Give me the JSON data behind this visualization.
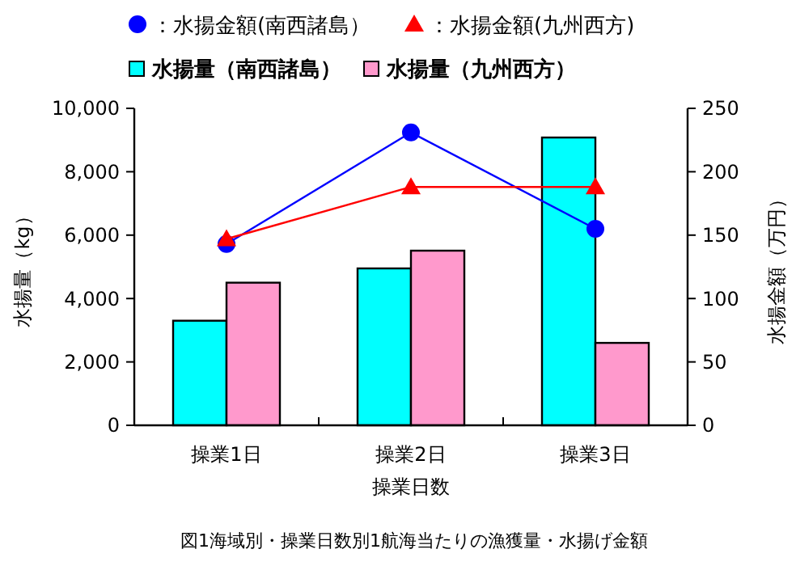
{
  "chart_data": {
    "type": "bar",
    "categories": [
      "操業1日",
      "操業2日",
      "操業3日"
    ],
    "xlabel": "操業日数",
    "ylabel": "水揚量（kg）",
    "y2label": "水揚金額（万円）",
    "ylim": [
      0,
      10000
    ],
    "yticks": [
      {
        "value": 0,
        "label": "0"
      },
      {
        "value": 2000,
        "label": "2,000"
      },
      {
        "value": 4000,
        "label": "4,000"
      },
      {
        "value": 6000,
        "label": "6,000"
      },
      {
        "value": 8000,
        "label": "8,000"
      },
      {
        "value": 10000,
        "label": "10,000"
      }
    ],
    "y2lim": [
      0,
      250
    ],
    "y2ticks": [
      0,
      50,
      100,
      150,
      200,
      250
    ],
    "series": [
      {
        "name": "：水揚金額(南西諸島）",
        "type": "line",
        "axis": "y2",
        "marker": "circle",
        "color": "#0000ff",
        "values": [
          143,
          231,
          155
        ]
      },
      {
        "name": "：水揚金額(九州西方)",
        "type": "line",
        "axis": "y2",
        "marker": "triangle",
        "color": "#ff0000",
        "values": [
          147,
          188,
          188
        ]
      },
      {
        "name": "水揚量（南西諸島）",
        "color": "#00ffff",
        "values": [
          3300,
          4950,
          9080
        ]
      },
      {
        "name": "水揚量（九州西方）",
        "color": "#ff99cc",
        "values": [
          4500,
          5510,
          2600
        ]
      }
    ],
    "legend": "top",
    "grid": false,
    "annotations": [
      "図1海域別・操業日数別1航海当たりの漁獲量・水揚げ金額"
    ]
  }
}
